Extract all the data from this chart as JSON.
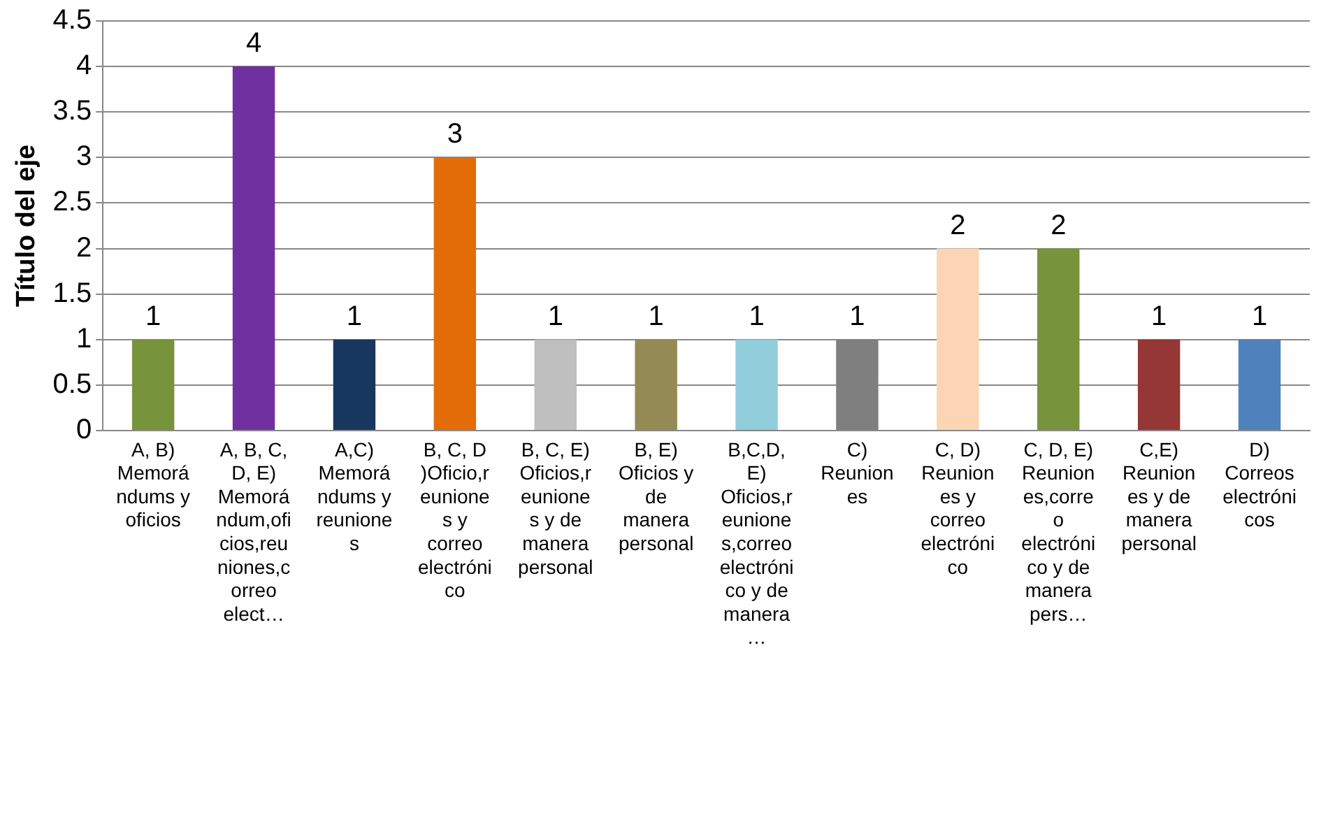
{
  "chart_data": {
    "type": "bar",
    "ylabel": "Título del eje",
    "categories": [
      "A, B) Memorándums y oficios",
      "A, B, C, D, E) Memorándum,oficios,reuniones,correo elect…",
      "A,C) Memorándums y reuniones",
      "B, C, D )Oficio,reuniones y correo electrónico",
      "B, C, E) Oficios,reuniones y de manera personal",
      "B, E) Oficios y de manera personal",
      "B,C,D, E) Oficios,reuniones,correo electrónico y de manera…",
      "C) Reuniones",
      "C, D) Reuniones y correo electrónico",
      "C, D, E) Reuniones,correo electrónico y de manera pers…",
      "C,E) Reuniones y de manera personal",
      "D) Correos electrónicos"
    ],
    "values": [
      1,
      4,
      1,
      3,
      1,
      1,
      1,
      1,
      2,
      2,
      1,
      1
    ],
    "colors": [
      "#77933c",
      "#7030a0",
      "#17375e",
      "#e36c09",
      "#bfbfbf",
      "#948a54",
      "#92cddc",
      "#7f7f7f",
      "#fcd5b5",
      "#77933c",
      "#953735",
      "#4f81bd"
    ],
    "ylim": [
      0,
      4.5
    ],
    "yticks": [
      0,
      0.5,
      1,
      1.5,
      2,
      2.5,
      3,
      3.5,
      4,
      4.5
    ],
    "grid": "y",
    "data_labels": true,
    "legend": false
  }
}
